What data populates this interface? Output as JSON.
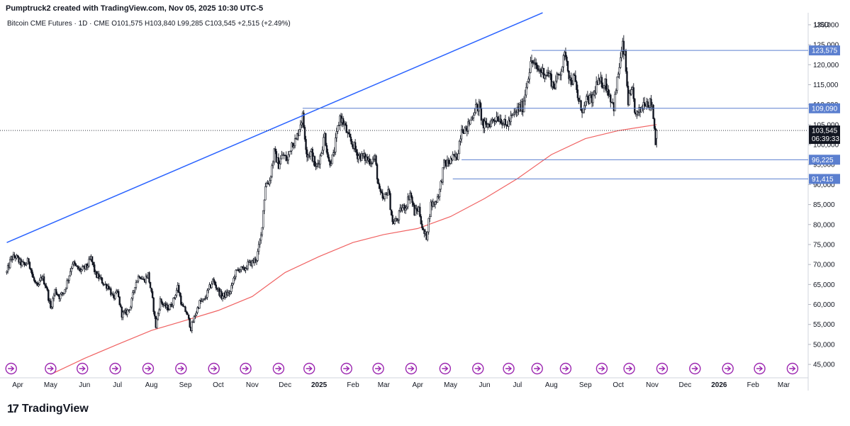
{
  "header": {
    "credit": "Pumptruck2 created with TradingView.com, Nov 05, 2025 10:30 UTC-5"
  },
  "legend": {
    "text": "Bitcoin CME Futures · 1D · CME  O101,575  H103,840  L99,285  C103,545  +2,515 (+2.49%)"
  },
  "branding": {
    "name": "TradingView",
    "mark": "17"
  },
  "colors": {
    "up": "#131722",
    "down": "#131722",
    "trendline": "#2962ff",
    "hline": "#5b7fcf",
    "ma": "#f06262",
    "price_tag": "#131722",
    "level_tag": "#5b7fcf",
    "event_icon": "#9c27b0"
  },
  "chart_data": {
    "type": "candlestick",
    "currency": "USD",
    "y_ticks": [
      "45,000",
      "50,000",
      "55,000",
      "60,000",
      "65,000",
      "70,000",
      "75,000",
      "80,000",
      "85,000",
      "90,000",
      "95,000",
      "100,000",
      "105,000",
      "110,000",
      "115,000",
      "120,000",
      "125,000",
      "130,000"
    ],
    "ylim": [
      42000,
      133000
    ],
    "x_ticks": [
      {
        "label": "Apr",
        "date": "2024-04-01",
        "bold": false
      },
      {
        "label": "May",
        "date": "2024-05-01",
        "bold": false
      },
      {
        "label": "Jun",
        "date": "2024-06-01",
        "bold": false
      },
      {
        "label": "Jul",
        "date": "2024-07-01",
        "bold": false
      },
      {
        "label": "Aug",
        "date": "2024-08-01",
        "bold": false
      },
      {
        "label": "Sep",
        "date": "2024-09-01",
        "bold": false
      },
      {
        "label": "Oct",
        "date": "2024-10-01",
        "bold": false
      },
      {
        "label": "Nov",
        "date": "2024-11-01",
        "bold": false
      },
      {
        "label": "Dec",
        "date": "2024-12-01",
        "bold": false
      },
      {
        "label": "2025",
        "date": "2025-01-01",
        "bold": true
      },
      {
        "label": "Feb",
        "date": "2025-02-01",
        "bold": false
      },
      {
        "label": "Mar",
        "date": "2025-03-01",
        "bold": false
      },
      {
        "label": "Apr",
        "date": "2025-04-01",
        "bold": false
      },
      {
        "label": "May",
        "date": "2025-05-01",
        "bold": false
      },
      {
        "label": "Jun",
        "date": "2025-06-01",
        "bold": false
      },
      {
        "label": "Jul",
        "date": "2025-07-01",
        "bold": false
      },
      {
        "label": "Aug",
        "date": "2025-08-01",
        "bold": false
      },
      {
        "label": "Sep",
        "date": "2025-09-01",
        "bold": false
      },
      {
        "label": "Oct",
        "date": "2025-10-01",
        "bold": false
      },
      {
        "label": "Nov",
        "date": "2025-11-01",
        "bold": false
      },
      {
        "label": "Dec",
        "date": "2025-12-01",
        "bold": false
      },
      {
        "label": "2026",
        "date": "2026-01-01",
        "bold": true
      },
      {
        "label": "Feb",
        "date": "2026-02-01",
        "bold": false
      },
      {
        "label": "Mar",
        "date": "2026-03-01",
        "bold": false
      }
    ],
    "xlim": [
      "2024-03-21",
      "2026-03-22"
    ],
    "close_series": [
      [
        "2024-03-22",
        68000
      ],
      [
        "2024-03-26",
        71500
      ],
      [
        "2024-03-30",
        72000
      ],
      [
        "2024-04-03",
        70500
      ],
      [
        "2024-04-07",
        69800
      ],
      [
        "2024-04-11",
        71000
      ],
      [
        "2024-04-15",
        66500
      ],
      [
        "2024-04-19",
        64000
      ],
      [
        "2024-04-23",
        67000
      ],
      [
        "2024-04-27",
        64500
      ],
      [
        "2024-05-01",
        59000
      ],
      [
        "2024-05-05",
        63500
      ],
      [
        "2024-05-09",
        62000
      ],
      [
        "2024-05-13",
        63000
      ],
      [
        "2024-05-17",
        66500
      ],
      [
        "2024-05-21",
        70500
      ],
      [
        "2024-05-25",
        69000
      ],
      [
        "2024-05-29",
        68500
      ],
      [
        "2024-06-03",
        69500
      ],
      [
        "2024-06-07",
        71500
      ],
      [
        "2024-06-11",
        67500
      ],
      [
        "2024-06-15",
        66500
      ],
      [
        "2024-06-19",
        65000
      ],
      [
        "2024-06-23",
        64500
      ],
      [
        "2024-06-27",
        61500
      ],
      [
        "2024-07-01",
        63000
      ],
      [
        "2024-07-05",
        57500
      ],
      [
        "2024-07-09",
        58000
      ],
      [
        "2024-07-13",
        59500
      ],
      [
        "2024-07-17",
        65000
      ],
      [
        "2024-07-21",
        67500
      ],
      [
        "2024-07-25",
        66000
      ],
      [
        "2024-07-29",
        67500
      ],
      [
        "2024-08-02",
        61000
      ],
      [
        "2024-08-05",
        54500
      ],
      [
        "2024-08-09",
        61000
      ],
      [
        "2024-08-13",
        59500
      ],
      [
        "2024-08-17",
        59000
      ],
      [
        "2024-08-21",
        61000
      ],
      [
        "2024-08-25",
        64500
      ],
      [
        "2024-08-29",
        59500
      ],
      [
        "2024-09-02",
        58000
      ],
      [
        "2024-09-06",
        54000
      ],
      [
        "2024-09-10",
        57500
      ],
      [
        "2024-09-14",
        60500
      ],
      [
        "2024-09-18",
        61000
      ],
      [
        "2024-09-22",
        63500
      ],
      [
        "2024-09-26",
        66000
      ],
      [
        "2024-09-30",
        64000
      ],
      [
        "2024-10-04",
        62000
      ],
      [
        "2024-10-08",
        62500
      ],
      [
        "2024-10-12",
        63000
      ],
      [
        "2024-10-16",
        67500
      ],
      [
        "2024-10-20",
        69000
      ],
      [
        "2024-10-24",
        68500
      ],
      [
        "2024-10-28",
        70000
      ],
      [
        "2024-11-01",
        70500
      ],
      [
        "2024-11-05",
        71500
      ],
      [
        "2024-11-09",
        77000
      ],
      [
        "2024-11-13",
        90000
      ],
      [
        "2024-11-17",
        91000
      ],
      [
        "2024-11-21",
        98000
      ],
      [
        "2024-11-25",
        95000
      ],
      [
        "2024-11-29",
        97500
      ],
      [
        "2024-12-03",
        96000
      ],
      [
        "2024-12-07",
        100500
      ],
      [
        "2024-12-11",
        101000
      ],
      [
        "2024-12-15",
        105500
      ],
      [
        "2024-12-17",
        107000
      ],
      [
        "2024-12-21",
        97500
      ],
      [
        "2024-12-25",
        98000
      ],
      [
        "2024-12-29",
        94000
      ],
      [
        "2025-01-02",
        97000
      ],
      [
        "2025-01-06",
        102500
      ],
      [
        "2025-01-10",
        95500
      ],
      [
        "2025-01-14",
        97000
      ],
      [
        "2025-01-18",
        104000
      ],
      [
        "2025-01-20",
        107000
      ],
      [
        "2025-01-24",
        105000
      ],
      [
        "2025-01-28",
        101500
      ],
      [
        "2025-02-01",
        100000
      ],
      [
        "2025-02-05",
        97500
      ],
      [
        "2025-02-09",
        97000
      ],
      [
        "2025-02-13",
        96500
      ],
      [
        "2025-02-17",
        96000
      ],
      [
        "2025-02-21",
        96500
      ],
      [
        "2025-02-25",
        88000
      ],
      [
        "2025-03-01",
        86000
      ],
      [
        "2025-03-05",
        89000
      ],
      [
        "2025-03-09",
        80500
      ],
      [
        "2025-03-13",
        81000
      ],
      [
        "2025-03-17",
        84000
      ],
      [
        "2025-03-21",
        84500
      ],
      [
        "2025-03-25",
        88000
      ],
      [
        "2025-03-29",
        83000
      ],
      [
        "2025-04-02",
        84000
      ],
      [
        "2025-04-06",
        78000
      ],
      [
        "2025-04-09",
        77000
      ],
      [
        "2025-04-13",
        85000
      ],
      [
        "2025-04-17",
        85500
      ],
      [
        "2025-04-21",
        88500
      ],
      [
        "2025-04-25",
        95000
      ],
      [
        "2025-04-29",
        95500
      ],
      [
        "2025-05-03",
        96500
      ],
      [
        "2025-05-07",
        97000
      ],
      [
        "2025-05-11",
        104500
      ],
      [
        "2025-05-15",
        103500
      ],
      [
        "2025-05-19",
        106000
      ],
      [
        "2025-05-23",
        109000
      ],
      [
        "2025-05-27",
        109500
      ],
      [
        "2025-05-31",
        104500
      ],
      [
        "2025-06-04",
        105000
      ],
      [
        "2025-06-08",
        106000
      ],
      [
        "2025-06-12",
        107000
      ],
      [
        "2025-06-16",
        106500
      ],
      [
        "2025-06-20",
        104500
      ],
      [
        "2025-06-24",
        106000
      ],
      [
        "2025-06-28",
        107500
      ],
      [
        "2025-07-02",
        109000
      ],
      [
        "2025-07-06",
        109500
      ],
      [
        "2025-07-10",
        116500
      ],
      [
        "2025-07-14",
        121000
      ],
      [
        "2025-07-18",
        119000
      ],
      [
        "2025-07-22",
        118500
      ],
      [
        "2025-07-26",
        118000
      ],
      [
        "2025-07-30",
        117500
      ],
      [
        "2025-08-03",
        114500
      ],
      [
        "2025-08-07",
        117000
      ],
      [
        "2025-08-11",
        120000
      ],
      [
        "2025-08-14",
        123000
      ],
      [
        "2025-08-18",
        116000
      ],
      [
        "2025-08-22",
        116500
      ],
      [
        "2025-08-26",
        110500
      ],
      [
        "2025-08-30",
        108500
      ],
      [
        "2025-09-03",
        111500
      ],
      [
        "2025-09-07",
        111000
      ],
      [
        "2025-09-11",
        115000
      ],
      [
        "2025-09-15",
        115500
      ],
      [
        "2025-09-19",
        115500
      ],
      [
        "2025-09-23",
        112500
      ],
      [
        "2025-09-27",
        109500
      ],
      [
        "2025-10-01",
        118000
      ],
      [
        "2025-10-05",
        124500
      ],
      [
        "2025-10-07",
        122000
      ],
      [
        "2025-10-10",
        111000
      ],
      [
        "2025-10-14",
        113000
      ],
      [
        "2025-10-17",
        107000
      ],
      [
        "2025-10-21",
        108500
      ],
      [
        "2025-10-25",
        111000
      ],
      [
        "2025-10-29",
        110500
      ],
      [
        "2025-11-01",
        110000
      ],
      [
        "2025-11-04",
        101000
      ],
      [
        "2025-11-05",
        103545
      ]
    ],
    "ma_series": [
      [
        "2024-05-01",
        42500
      ],
      [
        "2024-06-01",
        46500
      ],
      [
        "2024-07-01",
        50000
      ],
      [
        "2024-08-01",
        53500
      ],
      [
        "2024-09-01",
        56000
      ],
      [
        "2024-10-01",
        58500
      ],
      [
        "2024-11-01",
        62000
      ],
      [
        "2024-12-01",
        68000
      ],
      [
        "2025-01-01",
        72000
      ],
      [
        "2025-02-01",
        75500
      ],
      [
        "2025-03-01",
        77500
      ],
      [
        "2025-04-01",
        79000
      ],
      [
        "2025-05-01",
        82000
      ],
      [
        "2025-06-01",
        86500
      ],
      [
        "2025-07-01",
        91500
      ],
      [
        "2025-08-01",
        97500
      ],
      [
        "2025-09-01",
        101500
      ],
      [
        "2025-10-01",
        103500
      ],
      [
        "2025-11-05",
        105000
      ]
    ],
    "trendline": {
      "from": [
        "2024-03-22",
        75500
      ],
      "to": [
        "2025-07-24",
        133000
      ]
    },
    "horizontal_levels": [
      {
        "value": 123575,
        "label": "123,575",
        "from": "2025-07-14"
      },
      {
        "value": 109090,
        "label": "109,090",
        "from": "2024-12-17"
      },
      {
        "value": 96225,
        "label": "96,225",
        "from": "2025-05-11"
      },
      {
        "value": 91415,
        "label": "91,415",
        "from": "2025-05-03"
      }
    ],
    "current_price": {
      "value": 103545,
      "label": "103,545",
      "countdown": "06:39:33"
    },
    "event_dates": [
      "2024-03-26",
      "2024-05-01",
      "2024-05-30",
      "2024-06-29",
      "2024-07-29",
      "2024-08-28",
      "2024-09-27",
      "2024-10-26",
      "2024-11-25",
      "2024-12-23",
      "2025-01-26",
      "2025-02-24",
      "2025-03-26",
      "2025-04-26",
      "2025-05-26",
      "2025-06-23",
      "2025-07-19",
      "2025-08-14",
      "2025-09-16",
      "2025-10-11",
      "2025-11-10",
      "2025-12-10",
      "2026-01-09",
      "2026-02-07",
      "2026-03-09"
    ]
  }
}
